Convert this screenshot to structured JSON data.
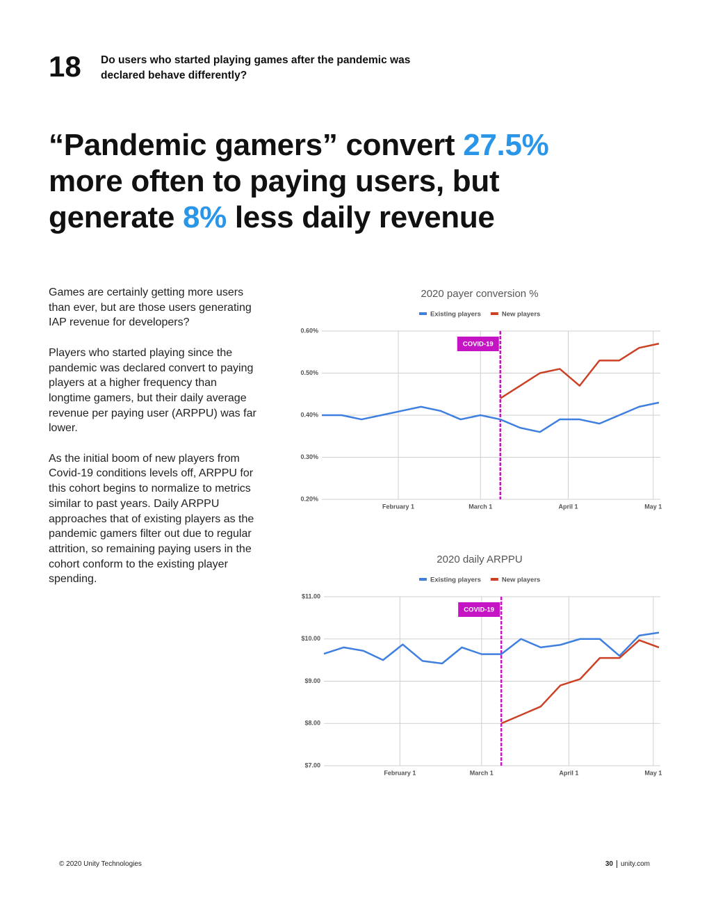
{
  "header": {
    "number": "18",
    "question": "Do users who started playing games after the pandemic was declared behave differently?"
  },
  "headline": {
    "parts": [
      "“Pandemic gamers” convert ",
      "27.5%",
      "more often to paying users, but",
      "generate ",
      "8%",
      " less daily revenue"
    ],
    "highlight_color": "#2b96e8"
  },
  "body": {
    "paragraphs": [
      "Games are certainly getting more users than ever, but are those users generating IAP revenue for developers?",
      "Players who started playing since the pandemic was declared convert to paying players at a higher frequency than longtime gamers, but their daily average revenue per paying user (ARPPU) was far lower.",
      "As the initial boom of new players from Covid-19 conditions levels off, ARPPU for this cohort begins to normalize to metrics similar to past years. Daily ARPPU approaches that of existing players as the pandemic gamers filter out due to regular attrition, so remaining paying users in the cohort conform to the existing player spending."
    ]
  },
  "chart_data": [
    {
      "type": "line",
      "title": "2020 payer conversion %",
      "x": [
        5,
        12,
        19,
        26,
        33,
        40,
        47,
        54,
        61,
        68,
        75,
        82,
        89,
        96,
        103,
        110,
        117,
        124
      ],
      "xlim": [
        5,
        124.5
      ],
      "xticks": [
        {
          "value": 32,
          "label": "February 1"
        },
        {
          "value": 61,
          "label": "March 1"
        },
        {
          "value": 92,
          "label": "April 1"
        },
        {
          "value": 122,
          "label": "May 1"
        }
      ],
      "ylim": [
        0.2,
        0.6
      ],
      "yticks": [
        {
          "value": 0.2,
          "label": "0.20%"
        },
        {
          "value": 0.3,
          "label": "0.30%"
        },
        {
          "value": 0.4,
          "label": "0.40%"
        },
        {
          "value": 0.5,
          "label": "0.50%"
        },
        {
          "value": 0.6,
          "label": "0.60%"
        }
      ],
      "grid": true,
      "legend": "top",
      "series": [
        {
          "name": "Existing players",
          "color": "#3f7fe0",
          "values": [
            0.4,
            0.4,
            0.39,
            0.4,
            0.41,
            0.42,
            0.41,
            0.39,
            0.4,
            0.39,
            0.37,
            0.36,
            0.39,
            0.39,
            0.38,
            0.4,
            0.42,
            0.43
          ]
        },
        {
          "name": "New players",
          "color": "#cc4125",
          "values": [
            null,
            null,
            null,
            null,
            null,
            null,
            null,
            null,
            null,
            0.44,
            0.47,
            0.5,
            0.51,
            0.47,
            0.53,
            0.53,
            0.56,
            0.57
          ]
        }
      ],
      "annotations": [
        {
          "text": "COVID-19",
          "x": 68,
          "color": "#c414c4"
        }
      ]
    },
    {
      "type": "line",
      "title": "2020 daily ARPPU",
      "x": [
        5,
        12,
        19,
        26,
        33,
        40,
        47,
        54,
        61,
        68,
        75,
        82,
        89,
        96,
        103,
        110,
        117,
        124
      ],
      "xlim": [
        5,
        124.5
      ],
      "xticks": [
        {
          "value": 32,
          "label": "February 1"
        },
        {
          "value": 61,
          "label": "March 1"
        },
        {
          "value": 92,
          "label": "April 1"
        },
        {
          "value": 122,
          "label": "May 1"
        }
      ],
      "ylim": [
        7,
        11
      ],
      "yticks": [
        {
          "value": 7,
          "label": "$7.00"
        },
        {
          "value": 8,
          "label": "$8.00"
        },
        {
          "value": 9,
          "label": "$9.00"
        },
        {
          "value": 10,
          "label": "$10.00"
        },
        {
          "value": 11,
          "label": "$11.00"
        }
      ],
      "grid": true,
      "legend": "top",
      "series": [
        {
          "name": "Existing players",
          "color": "#3f7fe0",
          "values": [
            9.65,
            9.8,
            9.72,
            9.5,
            9.87,
            9.48,
            9.42,
            9.8,
            9.64,
            9.64,
            10.0,
            9.8,
            9.86,
            10.0,
            10.0,
            9.6,
            10.08,
            10.15
          ]
        },
        {
          "name": "New players",
          "color": "#cc4125",
          "values": [
            null,
            null,
            null,
            null,
            null,
            null,
            null,
            null,
            null,
            8.0,
            8.2,
            8.4,
            8.9,
            9.05,
            9.55,
            9.55,
            9.97,
            9.8
          ]
        }
      ],
      "annotations": [
        {
          "text": "COVID-19",
          "x": 68,
          "color": "#c414c4"
        }
      ]
    }
  ],
  "footer": {
    "copyright": "© 2020 Unity Technologies",
    "page": "30",
    "site": "unity.com"
  }
}
